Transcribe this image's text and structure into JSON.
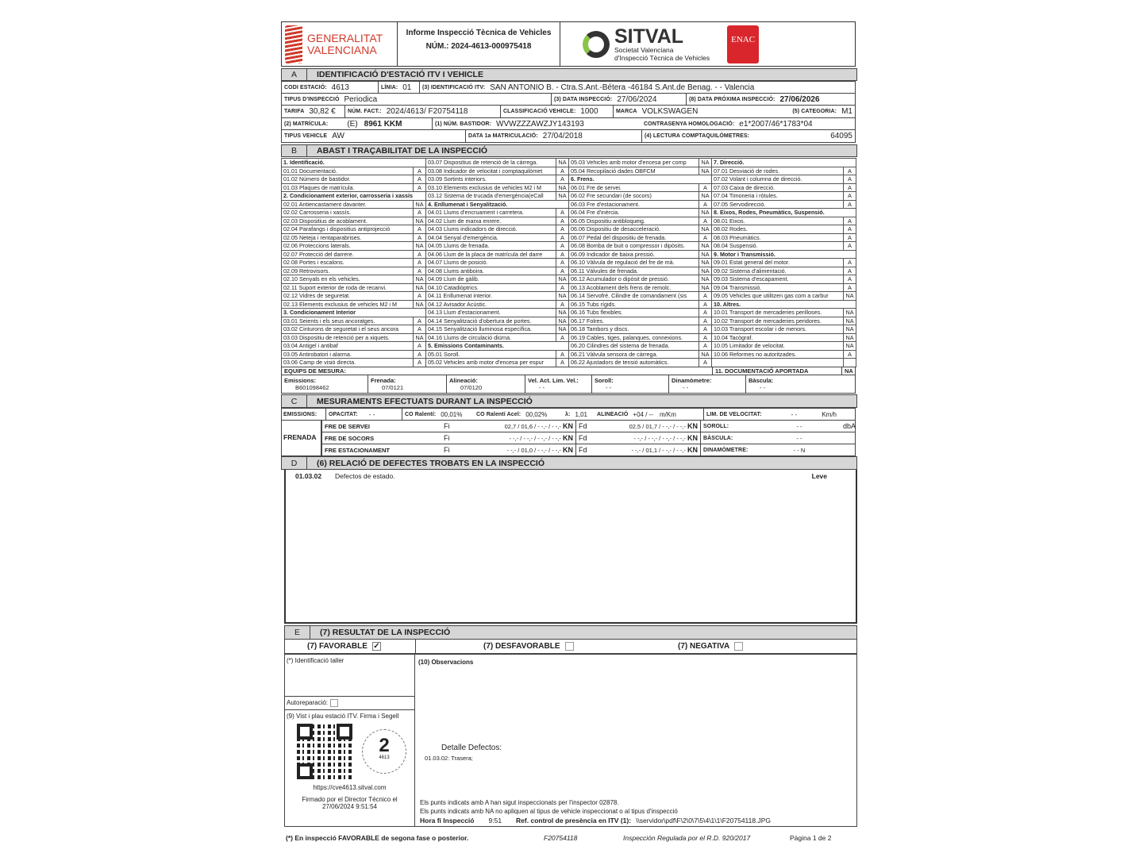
{
  "header": {
    "logo_left": "GENERALITAT VALENCIANA",
    "title": "Informe Inspecció Tècnica de Vehicles",
    "number": "NÚM.: 2024-4613-000975418",
    "sitval": "SITVAL",
    "sitval_sub1": "Societat Valenciana",
    "sitval_sub2": "d'Inspecció Tècnica de Vehicles",
    "enac": "ENAC",
    "enac_color": "#d9262c",
    "gv_color": "#d03a2a",
    "sitval_green": "#8bc34a"
  },
  "sectionA": {
    "letter": "A",
    "title": "IDENTIFICACIÓ D'ESTACIÓ ITV I VEHICLE",
    "codi_k": "CODI ESTACIÓ:",
    "codi": "4613",
    "linia_k": "LÍNIA:",
    "linia": "01",
    "itv_k": "(3) IDENTIFICACIÓ ITV:",
    "itv": "SAN ANTONIO B. -   Ctra.S.Ant.-Bétera -46184 S.Ant.de Benag. -  - Valencia",
    "tipus_k": "TIPUS D'INSPECCIÓ",
    "tipus": "Periodica",
    "data_k": "(3) DATA INSPECCIÓ:",
    "data": "27/06/2024",
    "prox_k": "(8) DATA PRÓXIMA INSPECCIÓ:",
    "prox": "27/06/2026",
    "tarifa_k": "TARIFA",
    "tarifa": "30,82 €",
    "fact_k": "NÚM. FACT.:",
    "fact": "2024/4613/ F20754118",
    "class_k": "CLASSIFICACIÓ VEHICLE:",
    "class": "1000",
    "marca_k": "MARCA",
    "marca": "VOLKSWAGEN",
    "cat_k": "(5) CATEGORIA:",
    "cat": "M1",
    "mat_k": "(2) MATRÍCULA:",
    "mat_pre": "(E)",
    "mat": "8961 KKM",
    "bast_k": "(1) NÚM. BASTIDOR:",
    "bast": "WVWZZZAWZJY143193",
    "homol_k": "CONTRASENYA HOMOLOGACIÓ:",
    "homol": "e1*2007/46*1783*04",
    "tv_k": "TIPUS VEHICLE",
    "tv": "AW",
    "mat1_k": "DATA 1a MATRICULACIÓ:",
    "mat1": "27/04/2018",
    "km_k": "(4) LECTURA COMPTAQUILÓMETRES:",
    "km": "64095"
  },
  "sectionB": {
    "letter": "B",
    "title": "ABAST I TRAÇABILITAT DE LA INSPECCIÓ",
    "columns": [
      [
        {
          "t": "1. Identificació.",
          "h": true
        },
        {
          "t": "01.01 Documentació.",
          "s": "A"
        },
        {
          "t": "01.02 Número de bastidor.",
          "s": "A"
        },
        {
          "t": "01.03 Plaques de matrícula.",
          "s": "A"
        },
        {
          "t": "2. Condicionament exterior, carrosseria i xassís",
          "h": true
        },
        {
          "t": "02.01 Antiencastament davanter.",
          "s": "NA"
        },
        {
          "t": "02.02 Carrosseria i xassís.",
          "s": "A"
        },
        {
          "t": "02.03 Dispositius de acoblament.",
          "s": "NA"
        },
        {
          "t": "02.04 Parafangs i dispositius antiprojecció",
          "s": "A"
        },
        {
          "t": "02.05 Neteja i rentaparabrises.",
          "s": "A"
        },
        {
          "t": "02.06 Proteccions laterals.",
          "s": "NA"
        },
        {
          "t": "02.07 Protecció del darrere.",
          "s": "A"
        },
        {
          "t": "02.08 Portes i escalons.",
          "s": "A"
        },
        {
          "t": "02.09 Retrovisors.",
          "s": "A"
        },
        {
          "t": "02.10 Senyals en els vehicles.",
          "s": "NA"
        },
        {
          "t": "02.11 Suport exterior de roda de recanvi.",
          "s": "NA"
        },
        {
          "t": "02.12 Vidres de seguretat.",
          "s": "A"
        },
        {
          "t": "02.13 Elements exclusius de vehicles M2 i M",
          "s": "NA"
        },
        {
          "t": "3. Condicionament Interior",
          "h": true
        },
        {
          "t": "03.01 Seients i els seus ancoratges.",
          "s": "A"
        },
        {
          "t": "03.02 Cinturons de seguretat i el seus ancora",
          "s": "A"
        },
        {
          "t": "03.03 Dispositiu de retenció per a xiquets.",
          "s": "NA"
        },
        {
          "t": "03.04 Antigel i antibaf",
          "s": "A"
        },
        {
          "t": "03.05 Antirobatori i alarma.",
          "s": "A"
        },
        {
          "t": "03.06 Camp de visió directa.",
          "s": "A"
        }
      ],
      [
        {
          "t": "03.07 Dispositius de retenció de la càrrega.",
          "s": "NA"
        },
        {
          "t": "03.08 Indicador de velocitat i comptaquilòmet",
          "s": "A"
        },
        {
          "t": "03.09 Sortints interiors.",
          "s": "A"
        },
        {
          "t": "03.10 Elements exclusius de vehicles M2 i M",
          "s": "NA"
        },
        {
          "t": "03.12 Sistema de trucada d'emergència(eCall",
          "s": "NA"
        },
        {
          "t": "4. Enllumenat i Senyalització.",
          "h": true
        },
        {
          "t": "04.01 Llums d'encruament i carretera.",
          "s": "A"
        },
        {
          "t": "04.02 Llum de marxa enrere.",
          "s": "A"
        },
        {
          "t": "04.03 Llums indicadors de direcció.",
          "s": "A"
        },
        {
          "t": "04.04 Senyal d'emergència.",
          "s": "A"
        },
        {
          "t": "04.05 Llums de frenada.",
          "s": "A"
        },
        {
          "t": "04.06 Llum de la placa de matrícula del darre",
          "s": "A"
        },
        {
          "t": "04.07 Llums de posició.",
          "s": "A"
        },
        {
          "t": "04.08 Llums antiboira.",
          "s": "A"
        },
        {
          "t": "04.09 Llum de gàlib.",
          "s": "NA"
        },
        {
          "t": "04.10 Catadiòptrics.",
          "s": "A"
        },
        {
          "t": "04.11 Enllumenat interior.",
          "s": "NA"
        },
        {
          "t": "04.12 Avisador Acústic.",
          "s": "A"
        },
        {
          "t": "04.13 Llum d'estacionament.",
          "s": "NA"
        },
        {
          "t": "04.14 Senyalització d'obertura de portes.",
          "s": "NA"
        },
        {
          "t": "04.15 Senyalització lluminosa específica.",
          "s": "NA"
        },
        {
          "t": "04.16 Llums de circulació diürna.",
          "s": "A"
        },
        {
          "t": "5. Emissions Contaminants.",
          "h": true
        },
        {
          "t": "05.01 Soroll.",
          "s": "A"
        },
        {
          "t": "05.02 Vehicles amb motor d'encesa per espur",
          "s": "A"
        }
      ],
      [
        {
          "t": "05.03 Vehicles amb motor d'encesa per comp",
          "s": "NA"
        },
        {
          "t": "05.04 Recopilació dades OBFCM",
          "s": "NA"
        },
        {
          "t": "6. Frens.",
          "h": true
        },
        {
          "t": "06.01 Fre de servei.",
          "s": "A"
        },
        {
          "t": "06.02 Fre secundari (de socors)",
          "s": "NA"
        },
        {
          "t": "06.03 Fre d'estacionament.",
          "s": "A"
        },
        {
          "t": "06.04 Fre d'inèrcia.",
          "s": "NA"
        },
        {
          "t": "06.05 Dispositiu antibloqueig.",
          "s": "A"
        },
        {
          "t": "06.06 Dispositiu de desacceleració.",
          "s": "NA"
        },
        {
          "t": "06.07 Pedal del dispositiu de frenada.",
          "s": "A"
        },
        {
          "t": "06.08 Bomba de buit o compressor i dipòsits.",
          "s": "NA"
        },
        {
          "t": "06.09 Indicador de baixa pressió.",
          "s": "NA"
        },
        {
          "t": "06.10 Vàlvula de regulació del fre de mà.",
          "s": "NA"
        },
        {
          "t": "06.11 Vàlvules de frenada.",
          "s": "NA"
        },
        {
          "t": "06.12 Acumulador o dipòsit de pressió.",
          "s": "NA"
        },
        {
          "t": "06.13 Acoblament dels frens de remolc.",
          "s": "NA"
        },
        {
          "t": "06.14 Servofré. Cilindre de comandament (sis",
          "s": "A"
        },
        {
          "t": "06.15 Tubs rígids.",
          "s": "A"
        },
        {
          "t": "06.16 Tubs flexibles.",
          "s": "A"
        },
        {
          "t": "06.17 Folres.",
          "s": "A"
        },
        {
          "t": "06.18 Tambors y discs.",
          "s": "A"
        },
        {
          "t": "06.19 Cables, tiges, palanques, connexions.",
          "s": "A"
        },
        {
          "t": "06.20 Cilindres del sistema de frenada.",
          "s": "A"
        },
        {
          "t": "06.21 Vàlvula sensora de càrrega.",
          "s": "NA"
        },
        {
          "t": "06.22 Ajustadors de tensió automàtics.",
          "s": "A"
        }
      ],
      [
        {
          "t": "7. Direcció.",
          "h": true
        },
        {
          "t": "07.01 Desviació de rodes.",
          "s": "A"
        },
        {
          "t": "07.02 Volant i columna de direcció.",
          "s": "A"
        },
        {
          "t": "07.03 Caixa de direcció.",
          "s": "A"
        },
        {
          "t": "07.04 Timoneria i ròtules.",
          "s": "A"
        },
        {
          "t": "07.05 Servodirecció.",
          "s": "A"
        },
        {
          "t": "8. Eixos, Rodes, Pneumàtics, Suspensió.",
          "h": true
        },
        {
          "t": "08.01 Eixos.",
          "s": "A"
        },
        {
          "t": "08.02 Rodes.",
          "s": "A"
        },
        {
          "t": "08.03 Pneumàtics.",
          "s": "A"
        },
        {
          "t": "08.04 Suspensió.",
          "s": "A"
        },
        {
          "t": "9. Motor i Transmissió.",
          "h": true
        },
        {
          "t": "09.01 Estat general del motor.",
          "s": "A"
        },
        {
          "t": "09.02 Sistema d'alimentació.",
          "s": "A"
        },
        {
          "t": "09.03 Sistema d'escapament.",
          "s": "A"
        },
        {
          "t": "09.04 Transmissió.",
          "s": "A"
        },
        {
          "t": "09.05 Vehicles que utilitzen gas com a carbur",
          "s": "NA"
        },
        {
          "t": "10. Altres.",
          "h": true
        },
        {
          "t": "10.01 Transport de mercaderies perilloses.",
          "s": "NA"
        },
        {
          "t": "10.02 Transport de mercaderies peridores.",
          "s": "NA"
        },
        {
          "t": "10.03 Transport escolar i de menors.",
          "s": "NA"
        },
        {
          "t": "10.04 Tacògraf.",
          "s": "NA"
        },
        {
          "t": "10.05 Limitador de velocitat.",
          "s": "NA"
        },
        {
          "t": "10.06 Reformes no autoritzades.",
          "s": "A"
        },
        {
          "t": "",
          "s": ""
        }
      ]
    ],
    "equips": "EQUIPS DE MESURA:",
    "doc_k": "11. DOCUMENTACIÓ APORTADA",
    "doc": "NA",
    "equipment": [
      {
        "k": "Emissions:",
        "v": "B601098462"
      },
      {
        "k": "Frenada:",
        "v": "07/0121"
      },
      {
        "k": "Alineació:",
        "v": "07/0120"
      },
      {
        "k": "Vel. Act. Lim. Vel.:",
        "v": "- -"
      },
      {
        "k": "Soroll:",
        "v": "- -"
      },
      {
        "k": "Dinamòmetre:",
        "v": "- -"
      },
      {
        "k": "Bàscula:",
        "v": "- -"
      }
    ]
  },
  "sectionC": {
    "letter": "C",
    "title": "MESURAMENTS EFECTUATS DURANT LA INSPECCIÓ",
    "emissions_k": "EMISSIONS:",
    "opac_k": "OPACITAT:",
    "opac": "- -",
    "co_k": "CO Ralentí:",
    "co": "00,01%",
    "coa_k": "CO Ralentí Acel:",
    "coa": "00,02%",
    "lambda_k": "λ:",
    "lambda": "1,01",
    "alin_k": "ALINEACIÓ",
    "alin": "+04 / --",
    "alin_u": "m/Km",
    "lim_k": "LIM. DE VELOCITAT:",
    "lim": "- -",
    "lim_u": "Km/h",
    "frenada_k": "FRENADA",
    "brakes": [
      {
        "k": "FRE DE SERVEI",
        "fi": "02,7 / 01,6 / - -,- / - -,-",
        "fd": "02,5 / 01,7 / - -,- / - -,-",
        "ek": "SOROLL:",
        "ev": "- -",
        "eu": "dbA"
      },
      {
        "k": "FRE DE SOCORS",
        "fi": "- -,- / - -,- / - -,- / - -,-",
        "fd": "- -,- / - -,- / - -,- / - -,-",
        "ek": "BÀSCULA:",
        "ev": "- -",
        "eu": ""
      },
      {
        "k": "FRE ESTACIONAMENT",
        "fi": "- -,- / 01,0 / - -,- / - -,-",
        "fd": "- -,- / 01,1 / - -,- / - -,-",
        "ek": "DINAMÒMETRE:",
        "ev": "- - N",
        "eu": ""
      }
    ],
    "fi": "Fi",
    "fd": "Fd",
    "kn": "KN"
  },
  "sectionD": {
    "letter": "D",
    "title": "(6) RELACIÓ DE DEFECTES TROBATS EN LA INSPECCIÓ",
    "defects": [
      {
        "code": "01.03.02",
        "desc": "Defectos de estado.",
        "level": "Leve"
      }
    ]
  },
  "sectionE": {
    "letter": "E",
    "title": "(7) RESULTAT DE LA INSPECCIÓ",
    "favorable": "(7) FAVORABLE",
    "favorable_checked": true,
    "desfavorable": "(7) DESFAVORABLE",
    "negativa": "(7) NEGATIVA",
    "taller": "(*) Identificació taller",
    "autorep": "Autoreparació:",
    "vist": "(9) Vist i plau estació ITV. Firma i Segell",
    "stamp_num": "2",
    "stamp_code": "4613",
    "url": "https://cve4613.sitval.com",
    "signed1": "Firmado por el Director Técnico el",
    "signed2": "27/06/2024 9:51:54",
    "obs": "(10) Observacions",
    "detail_title": "Detalle Defectos:",
    "detail": "01.03.02: Trasera;",
    "note1": "Els punts indicats amb A han sigut inspeccionats per l'inspector 02878.",
    "note2": "Els punts indicats amb NA no apliquen al tipus de vehicle inspeccionat o al tipus d'inspecció",
    "hora_k": "Hora fi Inspecció",
    "hora": "9:51",
    "ref_k": "Ref. control de presència en ITV (1):",
    "ref": "\\\\servidor\\pdf\\F\\2\\0\\7\\5\\4\\1\\1\\F20754118.JPG"
  },
  "footer": {
    "note": "(*) En inspecció FAVORABLE de segona fase o posterior.",
    "code": "F20754118",
    "reg": "Inspección Regulada por el R.D. 920/2017",
    "page": "Página 1 de 2"
  }
}
